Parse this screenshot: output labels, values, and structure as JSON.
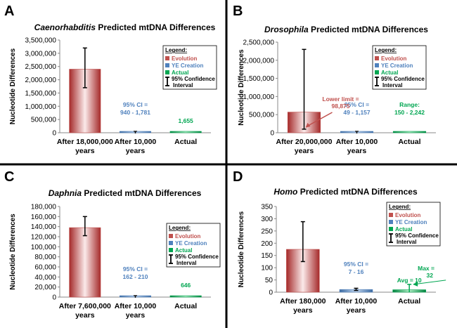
{
  "colors": {
    "evolution": "#c0504d",
    "creation": "#4f81bd",
    "actual": "#00a651",
    "lower_limit": "#c0504d",
    "max_annotation": "#00a651"
  },
  "legend": {
    "title": "Legend:",
    "evolution": "Evolution",
    "creation": "YE Creation",
    "actual": "Actual",
    "ci_line1": "95% Confidence",
    "ci_line2": "Interval"
  },
  "chart_data": [
    {
      "panel": "A",
      "type": "bar",
      "title_italic": "Caenorhabditis",
      "title_rest": " Predicted mtDNA Differences",
      "ylabel": "Nucleotide Differences",
      "ylim": [
        0,
        3500000
      ],
      "yticks": [
        0,
        500000,
        1000000,
        1500000,
        2000000,
        2500000,
        3000000,
        3500000
      ],
      "ytick_labels": [
        "0",
        "500,000",
        "1,000,000",
        "1,500,000",
        "2,000,000",
        "2,500,000",
        "3,000,000",
        "3,500,000"
      ],
      "categories": [
        [
          "After 18,000,000",
          "years"
        ],
        [
          "After 10,000",
          "years"
        ],
        [
          "Actual"
        ]
      ],
      "values": [
        2400000,
        1350,
        1655
      ],
      "err_low": [
        1700000,
        940,
        null
      ],
      "err_high": [
        3200000,
        1781,
        null
      ],
      "annotations": [
        {
          "cat": 1,
          "lines": [
            "95% CI =",
            "940 - 1,781"
          ],
          "color": "creation"
        },
        {
          "cat": 2,
          "lines": [
            "1,655"
          ],
          "color": "actual"
        }
      ]
    },
    {
      "panel": "B",
      "type": "bar",
      "title_italic": "Drosophila",
      "title_rest": " Predicted mtDNA Differences",
      "ylabel": "Nucleotide Differences",
      "ylim": [
        0,
        2500000
      ],
      "yticks": [
        0,
        500000,
        1000000,
        1500000,
        2000000,
        2500000
      ],
      "ytick_labels": [
        "0",
        "500,000",
        "1,000,000",
        "1,500,000",
        "2,000,000",
        "2,500,000"
      ],
      "categories": [
        [
          "After 20,000,000",
          "years"
        ],
        [
          "After 10,000",
          "years"
        ],
        [
          "Actual"
        ]
      ],
      "values": [
        570000,
        600,
        1200
      ],
      "err_low": [
        98875,
        49,
        null
      ],
      "err_high": [
        2300000,
        1157,
        null
      ],
      "annotations": [
        {
          "cat": 1,
          "lines": [
            "95% CI =",
            "49 - 1,157"
          ],
          "color": "creation"
        },
        {
          "cat": 2,
          "lines": [
            "Range:",
            "150 - 2,242"
          ],
          "color": "actual"
        }
      ],
      "lower_limit_label": [
        "Lower limit =",
        "98,875"
      ]
    },
    {
      "panel": "C",
      "type": "bar",
      "title_italic": "Daphnia",
      "title_rest": " Predicted mtDNA Differences",
      "ylabel": "Nucleotide Differences",
      "ylim": [
        0,
        180000
      ],
      "yticks": [
        0,
        20000,
        40000,
        60000,
        80000,
        100000,
        120000,
        140000,
        160000,
        180000
      ],
      "ytick_labels": [
        "0",
        "20,000",
        "40,000",
        "60,000",
        "80,000",
        "100,000",
        "120,000",
        "140,000",
        "160,000",
        "180,000"
      ],
      "categories": [
        [
          "After 7,600,000",
          "years"
        ],
        [
          "After 10,000",
          "years"
        ],
        [
          "Actual"
        ]
      ],
      "values": [
        138000,
        186,
        646
      ],
      "err_low": [
        122000,
        162,
        null
      ],
      "err_high": [
        160000,
        210,
        null
      ],
      "annotations": [
        {
          "cat": 1,
          "lines": [
            "95% CI =",
            "162 - 210"
          ],
          "color": "creation"
        },
        {
          "cat": 2,
          "lines": [
            "646"
          ],
          "color": "actual"
        }
      ]
    },
    {
      "panel": "D",
      "type": "bar",
      "title_italic": "Homo",
      "title_rest": " Predicted mtDNA Differences",
      "ylabel": "Nucleotide Differences",
      "ylim": [
        0,
        350
      ],
      "yticks": [
        0,
        50,
        100,
        150,
        200,
        250,
        300,
        350
      ],
      "ytick_labels": [
        "0",
        "50",
        "100",
        "150",
        "200",
        "250",
        "300",
        "350"
      ],
      "categories": [
        [
          "After 180,000",
          "years"
        ],
        [
          "After 10,000",
          "years"
        ],
        [
          "Actual"
        ]
      ],
      "values": [
        175,
        11,
        10
      ],
      "err_low": [
        125,
        7,
        null
      ],
      "err_high": [
        288,
        16,
        null
      ],
      "annotations": [
        {
          "cat": 1,
          "lines": [
            "95% CI =",
            "7 - 16"
          ],
          "color": "creation"
        },
        {
          "cat": 2,
          "lines": [
            "Avg = 10"
          ],
          "color": "actual"
        }
      ],
      "max_label": [
        "Max =",
        "32"
      ],
      "max_value": 32
    }
  ]
}
